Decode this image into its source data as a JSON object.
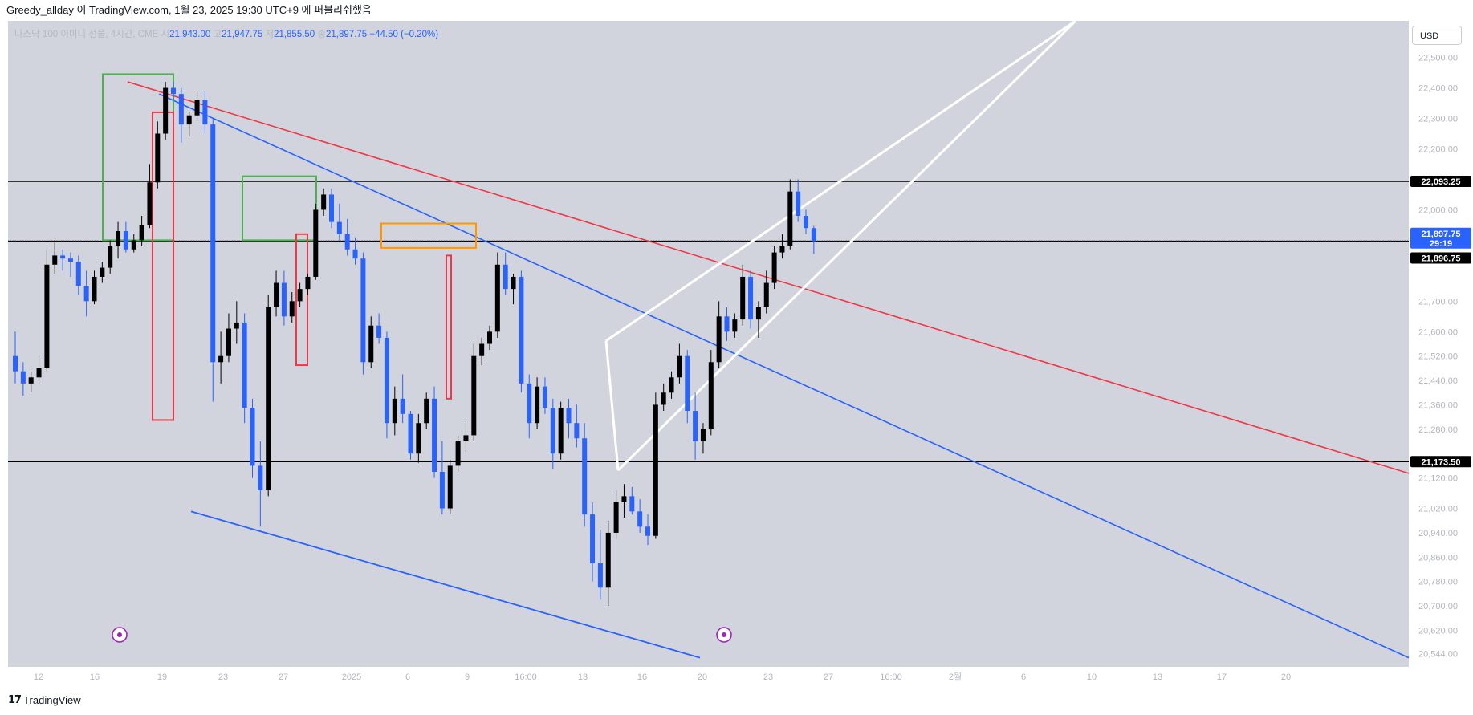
{
  "header": {
    "text": "Greedy_allday 이 TradingView.com, 1월 23, 2025 19:30 UTC+9 에 퍼블리쉬했음"
  },
  "legend": {
    "symbol": "나스닥 100 이미니 선물, 4시간, CME",
    "open_label": "시",
    "open": "21,943.00",
    "high_label": "고",
    "high": "21,947.75",
    "low_label": "저",
    "low": "21,855.50",
    "close_label": "종",
    "close": "21,897.75",
    "change": "−44.50 (−0.20%)"
  },
  "currency": "USD",
  "footer": {
    "brand": "TradingView"
  },
  "colors": {
    "background": "#d1d4dc",
    "up": "#000000",
    "down": "#2962ff",
    "red_line": "#f23645",
    "blue_line": "#2962ff",
    "white_line": "#ffffff",
    "green_box": "#4caf50",
    "orange_box": "#ff9800",
    "red_box": "#f23645"
  },
  "chart_data": {
    "type": "candlestick",
    "instrument": "나스닥 100 이미니 선물, 4시간, CME",
    "y_ticks": [
      "22,500.00",
      "22,400.00",
      "22,300.00",
      "22,200.00",
      "22,000.00",
      "21,700.00",
      "21,600.00",
      "21,520.00",
      "21,440.00",
      "21,360.00",
      "21,280.00",
      "21,120.00",
      "21,020.00",
      "20,940.00",
      "20,860.00",
      "20,780.00",
      "20,700.00",
      "20,620.00",
      "20,544.00"
    ],
    "x_ticks": [
      "12",
      "16",
      "19",
      "23",
      "27",
      "2025",
      "6",
      "9",
      "16:00",
      "13",
      "16",
      "20",
      "23",
      "27",
      "16:00",
      "2월",
      "6",
      "10",
      "13",
      "17",
      "20"
    ],
    "levels": [
      {
        "label": "22,093.25",
        "price": 22093.25,
        "style": "black"
      },
      {
        "label": "21,897.75",
        "sub": "29:19",
        "price": 21897.75,
        "style": "blue"
      },
      {
        "label": "21,896.75",
        "price": 21896.75,
        "style": "black"
      },
      {
        "label": "21,173.50",
        "price": 21173.5,
        "style": "black"
      }
    ],
    "candles_ohlc": [
      [
        21520,
        21600,
        21430,
        21470
      ],
      [
        21470,
        21500,
        21390,
        21430
      ],
      [
        21430,
        21470,
        21400,
        21450
      ],
      [
        21450,
        21520,
        21430,
        21480
      ],
      [
        21480,
        21870,
        21470,
        21820
      ],
      [
        21820,
        21900,
        21790,
        21850
      ],
      [
        21850,
        21870,
        21800,
        21840
      ],
      [
        21840,
        21860,
        21780,
        21830
      ],
      [
        21830,
        21850,
        21720,
        21750
      ],
      [
        21750,
        21800,
        21650,
        21700
      ],
      [
        21700,
        21800,
        21690,
        21780
      ],
      [
        21780,
        21830,
        21760,
        21810
      ],
      [
        21810,
        21900,
        21790,
        21880
      ],
      [
        21880,
        21960,
        21840,
        21930
      ],
      [
        21930,
        21960,
        21860,
        21870
      ],
      [
        21870,
        21920,
        21860,
        21900
      ],
      [
        21900,
        21980,
        21880,
        21950
      ],
      [
        21950,
        22150,
        21940,
        22090
      ],
      [
        22090,
        22290,
        22070,
        22250
      ],
      [
        22250,
        22420,
        22230,
        22400
      ],
      [
        22400,
        22420,
        22360,
        22380
      ],
      [
        22380,
        22400,
        22220,
        22280
      ],
      [
        22280,
        22320,
        22240,
        22310
      ],
      [
        22310,
        22390,
        22290,
        22360
      ],
      [
        22360,
        22390,
        22250,
        22280
      ],
      [
        22280,
        22300,
        21370,
        21500
      ],
      [
        21500,
        21600,
        21430,
        21520
      ],
      [
        21520,
        21660,
        21500,
        21610
      ],
      [
        21610,
        21700,
        21560,
        21630
      ],
      [
        21630,
        21660,
        21300,
        21350
      ],
      [
        21350,
        21380,
        21120,
        21160
      ],
      [
        21160,
        21240,
        20960,
        21080
      ],
      [
        21080,
        21720,
        21060,
        21680
      ],
      [
        21680,
        21800,
        21650,
        21760
      ],
      [
        21760,
        21800,
        21620,
        21650
      ],
      [
        21650,
        21730,
        21630,
        21700
      ],
      [
        21700,
        21760,
        21680,
        21740
      ],
      [
        21740,
        21790,
        21720,
        21780
      ],
      [
        21780,
        22020,
        21770,
        22000
      ],
      [
        22000,
        22070,
        21980,
        22050
      ],
      [
        22050,
        22070,
        21940,
        21960
      ],
      [
        21960,
        22020,
        21900,
        21920
      ],
      [
        21920,
        21970,
        21850,
        21870
      ],
      [
        21870,
        21910,
        21820,
        21840
      ],
      [
        21840,
        21860,
        21460,
        21500
      ],
      [
        21500,
        21650,
        21480,
        21620
      ],
      [
        21620,
        21660,
        21560,
        21580
      ],
      [
        21580,
        21600,
        21250,
        21300
      ],
      [
        21300,
        21420,
        21260,
        21380
      ],
      [
        21380,
        21460,
        21300,
        21330
      ],
      [
        21330,
        21340,
        21180,
        21200
      ],
      [
        21200,
        21330,
        21170,
        21300
      ],
      [
        21300,
        21400,
        21280,
        21380
      ],
      [
        21380,
        21420,
        21120,
        21140
      ],
      [
        21140,
        21240,
        21000,
        21020
      ],
      [
        21020,
        21180,
        21000,
        21160
      ],
      [
        21160,
        21260,
        21140,
        21240
      ],
      [
        21240,
        21300,
        21200,
        21260
      ],
      [
        21260,
        21560,
        21240,
        21520
      ],
      [
        21520,
        21580,
        21490,
        21560
      ],
      [
        21560,
        21620,
        21540,
        21600
      ],
      [
        21600,
        21860,
        21580,
        21820
      ],
      [
        21820,
        21860,
        21720,
        21740
      ],
      [
        21740,
        21790,
        21690,
        21780
      ],
      [
        21780,
        21800,
        21400,
        21430
      ],
      [
        21430,
        21460,
        21250,
        21300
      ],
      [
        21300,
        21450,
        21280,
        21420
      ],
      [
        21420,
        21450,
        21330,
        21350
      ],
      [
        21350,
        21380,
        21150,
        21200
      ],
      [
        21200,
        21370,
        21180,
        21350
      ],
      [
        21350,
        21380,
        21250,
        21300
      ],
      [
        21300,
        21360,
        21220,
        21250
      ],
      [
        21250,
        21300,
        20960,
        21000
      ],
      [
        21000,
        21040,
        20780,
        20840
      ],
      [
        20840,
        20950,
        20720,
        20760
      ],
      [
        20760,
        20980,
        20700,
        20940
      ],
      [
        20940,
        21080,
        20920,
        21040
      ],
      [
        21040,
        21100,
        20990,
        21060
      ],
      [
        21060,
        21090,
        21000,
        21010
      ],
      [
        21010,
        21050,
        20940,
        20960
      ],
      [
        20960,
        21000,
        20900,
        20930
      ],
      [
        20930,
        21400,
        20920,
        21360
      ],
      [
        21360,
        21430,
        21340,
        21400
      ],
      [
        21400,
        21470,
        21380,
        21450
      ],
      [
        21450,
        21560,
        21430,
        21520
      ],
      [
        21520,
        21540,
        21300,
        21340
      ],
      [
        21340,
        21400,
        21180,
        21240
      ],
      [
        21240,
        21300,
        21200,
        21280
      ],
      [
        21280,
        21540,
        21260,
        21500
      ],
      [
        21500,
        21700,
        21480,
        21650
      ],
      [
        21650,
        21680,
        21570,
        21600
      ],
      [
        21600,
        21660,
        21580,
        21640
      ],
      [
        21640,
        21820,
        21620,
        21780
      ],
      [
        21780,
        21800,
        21610,
        21640
      ],
      [
        21640,
        21700,
        21580,
        21680
      ],
      [
        21680,
        21800,
        21660,
        21760
      ],
      [
        21760,
        21880,
        21740,
        21860
      ],
      [
        21860,
        21920,
        21840,
        21880
      ],
      [
        21880,
        22100,
        21870,
        22060
      ],
      [
        22060,
        22100,
        21960,
        21980
      ],
      [
        21980,
        22000,
        21920,
        21940
      ],
      [
        21940,
        21947,
        21855,
        21897
      ]
    ],
    "x_range": [
      0,
      102
    ],
    "y_range": [
      20500,
      22620
    ]
  }
}
